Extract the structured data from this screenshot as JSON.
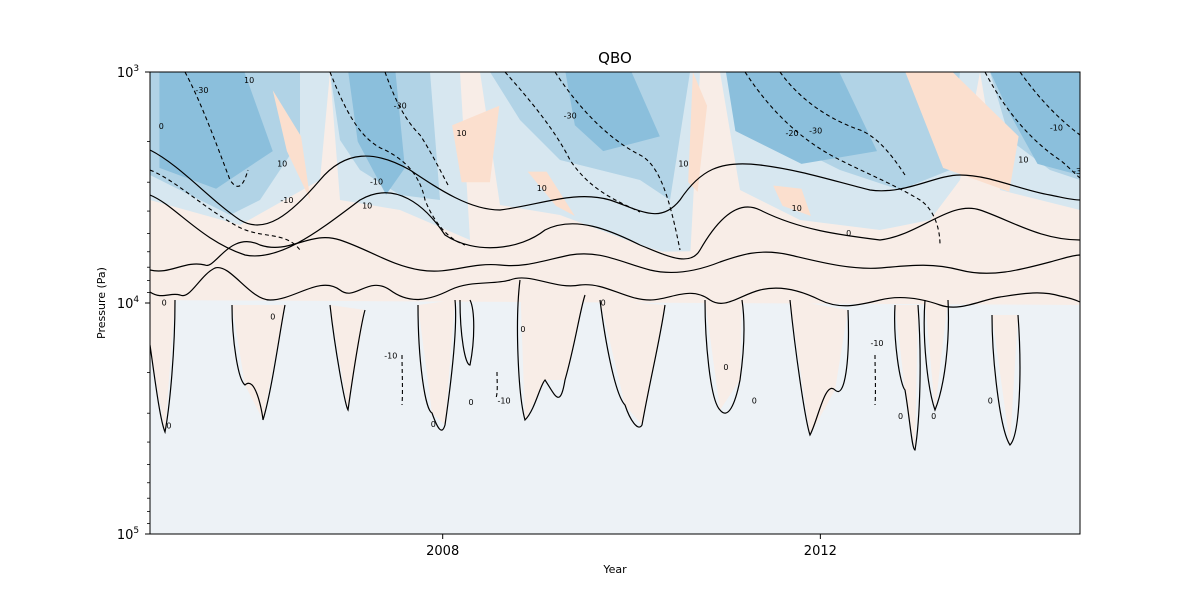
{
  "chart_data": {
    "type": "contour",
    "title": "QBO",
    "xlabel": "Year",
    "ylabel": "Pressure (Pa)",
    "x_scale": "time",
    "y_scale": "log",
    "y_inverted": true,
    "xlim": [
      2004.9,
      2014.75
    ],
    "ylim": [
      100000,
      1000
    ],
    "x_ticks": [
      {
        "value": 2008,
        "label": "2008"
      },
      {
        "value": 2012,
        "label": "2012"
      }
    ],
    "y_ticks": [
      {
        "value": 1000,
        "label": "10",
        "exp": "3"
      },
      {
        "value": 10000,
        "label": "10",
        "exp": "4"
      },
      {
        "value": 100000,
        "label": "10",
        "exp": "5"
      }
    ],
    "contour_levels": [
      -30,
      -20,
      -10,
      0,
      10
    ],
    "contour_labels_shown": [
      "-30",
      "-20",
      "-10",
      "0",
      "10",
      "-3"
    ],
    "colormap": {
      "-40": "#8bbfdc",
      "-30": "#b1d3e6",
      "-20": "#d7e7f0",
      "-10": "#edf2f6",
      "0": "#f8ede7",
      "10": "#fbdfce"
    },
    "background_color": "#ebf0f4",
    "grid": false,
    "legend": "none",
    "regions": [
      {
        "value": -35,
        "x": [
          2005.0,
          2005.9,
          2006.2,
          2005.6,
          2005.0
        ],
        "p": [
          1000,
          1000,
          2200,
          3200,
          2600
        ]
      },
      {
        "value": -35,
        "x": [
          2007.0,
          2007.5,
          2007.6,
          2007.4,
          2007.1
        ],
        "p": [
          1000,
          1000,
          2600,
          3400,
          2000
        ]
      },
      {
        "value": -35,
        "x": [
          2009.3,
          2010.0,
          2010.3,
          2009.7,
          2009.4
        ],
        "p": [
          1000,
          1000,
          1900,
          2200,
          1700
        ]
      },
      {
        "value": -35,
        "x": [
          2011.0,
          2012.2,
          2012.6,
          2011.8,
          2011.1
        ],
        "p": [
          1000,
          1000,
          2200,
          2500,
          1800
        ]
      },
      {
        "value": -35,
        "x": [
          2013.8,
          2014.75,
          2014.75,
          2014.3,
          2014.0
        ],
        "p": [
          1000,
          1000,
          2800,
          2500,
          1500
        ]
      },
      {
        "value": 15,
        "x": [
          2006.2,
          2006.5,
          2006.6,
          2006.35
        ],
        "p": [
          1200,
          1900,
          3600,
          2200
        ]
      },
      {
        "value": 15,
        "x": [
          2008.1,
          2008.6,
          2008.5,
          2008.2
        ],
        "p": [
          1700,
          1400,
          3000,
          3000
        ]
      },
      {
        "value": 15,
        "x": [
          2008.9,
          2009.1,
          2009.4,
          2009.2
        ],
        "p": [
          2700,
          2700,
          4200,
          3800
        ]
      },
      {
        "value": 15,
        "x": [
          2010.65,
          2010.8,
          2010.7,
          2010.6
        ],
        "p": [
          1000,
          1400,
          3300,
          3000
        ]
      },
      {
        "value": 15,
        "x": [
          2011.5,
          2011.8,
          2011.9,
          2011.6
        ],
        "p": [
          3100,
          3200,
          4200,
          3800
        ]
      },
      {
        "value": 15,
        "x": [
          2012.9,
          2013.4,
          2014.1,
          2014.0,
          2013.3
        ],
        "p": [
          1000,
          1000,
          1900,
          3300,
          2600
        ]
      }
    ],
    "label_annotations": [
      {
        "text": "-30",
        "x": 2005.45,
        "p": 1200
      },
      {
        "text": "10",
        "x": 2005.95,
        "p": 1090
      },
      {
        "text": "0",
        "x": 2005.02,
        "p": 1720
      },
      {
        "text": "10",
        "x": 2006.3,
        "p": 2500
      },
      {
        "text": "-10",
        "x": 2006.35,
        "p": 3600
      },
      {
        "text": "10",
        "x": 2007.2,
        "p": 3800
      },
      {
        "text": "-10",
        "x": 2007.3,
        "p": 3000
      },
      {
        "text": "-30",
        "x": 2007.55,
        "p": 1400
      },
      {
        "text": "10",
        "x": 2008.2,
        "p": 1850
      },
      {
        "text": "10",
        "x": 2009.05,
        "p": 3200
      },
      {
        "text": "-30",
        "x": 2009.35,
        "p": 1550
      },
      {
        "text": "10",
        "x": 2010.55,
        "p": 2500
      },
      {
        "text": "10",
        "x": 2011.75,
        "p": 3900
      },
      {
        "text": "-20",
        "x": 2011.7,
        "p": 1850
      },
      {
        "text": "-30",
        "x": 2011.95,
        "p": 1800
      },
      {
        "text": "0",
        "x": 2012.3,
        "p": 5000
      },
      {
        "text": "-10",
        "x": 2014.5,
        "p": 1750
      },
      {
        "text": "10",
        "x": 2014.15,
        "p": 2400
      },
      {
        "text": "-3",
        "x": 2014.72,
        "p": 2700
      },
      {
        "text": "0",
        "x": 2005.05,
        "p": 10000
      },
      {
        "text": "0",
        "x": 2006.2,
        "p": 11500
      },
      {
        "text": "0",
        "x": 2005.1,
        "p": 34000
      },
      {
        "text": "-10",
        "x": 2007.45,
        "p": 17000
      },
      {
        "text": "0",
        "x": 2007.9,
        "p": 33500
      },
      {
        "text": "0",
        "x": 2008.3,
        "p": 27000
      },
      {
        "text": "-10",
        "x": 2008.65,
        "p": 26500
      },
      {
        "text": "0",
        "x": 2008.85,
        "p": 13000
      },
      {
        "text": "0",
        "x": 2009.7,
        "p": 10000
      },
      {
        "text": "0",
        "x": 2011.0,
        "p": 19000
      },
      {
        "text": "0",
        "x": 2011.3,
        "p": 26500
      },
      {
        "text": "-10",
        "x": 2012.6,
        "p": 15000
      },
      {
        "text": "0",
        "x": 2012.85,
        "p": 31000
      },
      {
        "text": "0",
        "x": 2013.2,
        "p": 31000
      },
      {
        "text": "0",
        "x": 2013.8,
        "p": 26500
      }
    ]
  }
}
